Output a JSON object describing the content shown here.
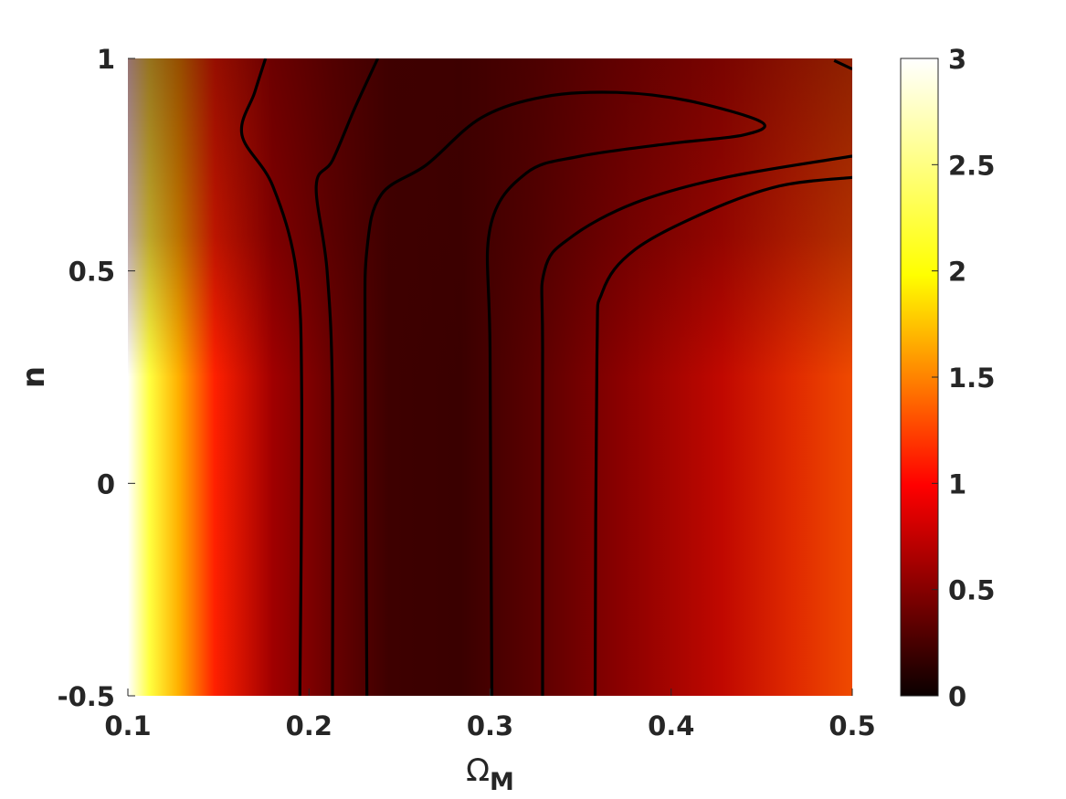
{
  "chart_data": {
    "type": "heatmap",
    "title": "",
    "xlabel": "Ω",
    "xlabel_sub": "M",
    "ylabel": "n",
    "xlim": [
      0.1,
      0.5
    ],
    "ylim": [
      -0.5,
      1
    ],
    "x_ticks": [
      "0.1",
      "0.2",
      "0.3",
      "0.4",
      "0.5"
    ],
    "y_ticks": [
      "-0.5",
      "0",
      "0.5",
      "1"
    ],
    "colorbar": {
      "colormap": "hot",
      "range": [
        0,
        3
      ],
      "ticks": [
        "0",
        "0.5",
        "1",
        "1.5",
        "2",
        "2.5",
        "3"
      ]
    },
    "contours": [
      {
        "name": "c1",
        "points": [
          [
            0.195,
            -0.5
          ],
          [
            0.196,
            0.2
          ],
          [
            0.193,
            0.5
          ],
          [
            0.18,
            0.7
          ],
          [
            0.163,
            0.82
          ],
          [
            0.17,
            0.92
          ],
          [
            0.176,
            1.0
          ]
        ]
      },
      {
        "name": "c2",
        "points": [
          [
            0.213,
            -0.5
          ],
          [
            0.213,
            0.2
          ],
          [
            0.21,
            0.5
          ],
          [
            0.204,
            0.7
          ],
          [
            0.213,
            0.76
          ],
          [
            0.225,
            0.88
          ],
          [
            0.238,
            1.0
          ]
        ]
      },
      {
        "name": "c3",
        "points": [
          [
            0.232,
            -0.5
          ],
          [
            0.231,
            0.3
          ],
          [
            0.232,
            0.55
          ],
          [
            0.24,
            0.68
          ],
          [
            0.265,
            0.75
          ],
          [
            0.295,
            0.86
          ],
          [
            0.33,
            0.91
          ],
          [
            0.37,
            0.92
          ],
          [
            0.41,
            0.9
          ],
          [
            0.45,
            0.85
          ],
          [
            0.44,
            0.82
          ],
          [
            0.4,
            0.8
          ],
          [
            0.35,
            0.77
          ],
          [
            0.32,
            0.73
          ],
          [
            0.3,
            0.6
          ],
          [
            0.3,
            0.3
          ],
          [
            0.301,
            -0.5
          ]
        ]
      },
      {
        "name": "c4",
        "points": [
          [
            0.329,
            -0.5
          ],
          [
            0.329,
            0.3
          ],
          [
            0.33,
            0.5
          ],
          [
            0.345,
            0.58
          ],
          [
            0.38,
            0.66
          ],
          [
            0.43,
            0.72
          ],
          [
            0.5,
            0.77
          ]
        ]
      },
      {
        "name": "c5",
        "points": [
          [
            0.358,
            -0.5
          ],
          [
            0.359,
            0.3
          ],
          [
            0.362,
            0.45
          ],
          [
            0.38,
            0.55
          ],
          [
            0.42,
            0.64
          ],
          [
            0.46,
            0.7
          ],
          [
            0.5,
            0.72
          ]
        ]
      },
      {
        "name": "c6",
        "points": [
          [
            0.49,
            0.995
          ],
          [
            0.5,
            0.975
          ]
        ]
      }
    ]
  }
}
